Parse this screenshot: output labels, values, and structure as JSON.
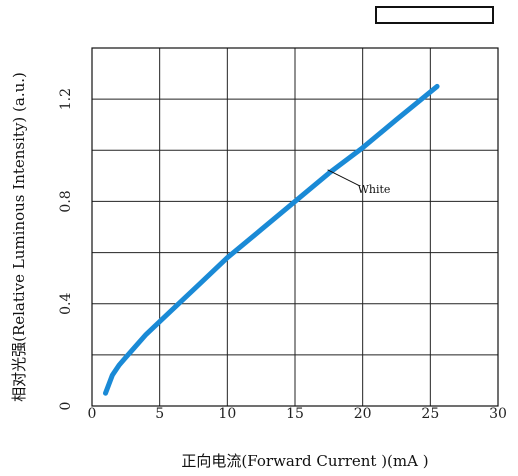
{
  "chart_data": {
    "type": "line",
    "xlabel": "正向电流(Forward Current )(mA )",
    "ylabel": "相对光强(Relative Luminous Intensity) (a.u.)",
    "xlim": [
      0,
      30
    ],
    "ylim": [
      0,
      1.4
    ],
    "x_ticks": [
      0,
      5,
      10,
      15,
      20,
      25,
      30
    ],
    "y_ticks": [
      0,
      0.4,
      0.8,
      1.2
    ],
    "x_tick_labels": [
      "0",
      "5",
      "10",
      "15",
      "20",
      "25",
      "30"
    ],
    "y_tick_labels": [
      "0",
      "0.4",
      "0.8",
      "1.2"
    ],
    "grid": true,
    "x_grid": [
      0,
      5,
      10,
      15,
      20,
      25,
      30
    ],
    "y_grid": [
      0,
      0.2,
      0.4,
      0.6,
      0.8,
      1.0,
      1.2,
      1.4
    ],
    "legend_box": "top-right",
    "series": [
      {
        "name": "White",
        "color": "#1a8ad6",
        "x": [
          1.0,
          1.5,
          2.0,
          2.5,
          3.0,
          4.0,
          5.0,
          6.0,
          8.0,
          10.0,
          12.5,
          15.0,
          17.5,
          20.0,
          22.5,
          25.5
        ],
        "y": [
          0.05,
          0.12,
          0.16,
          0.19,
          0.22,
          0.28,
          0.33,
          0.38,
          0.48,
          0.58,
          0.69,
          0.8,
          0.91,
          1.01,
          1.12,
          1.25
        ]
      }
    ],
    "annotations": [
      {
        "text": "White",
        "x": 18.0,
        "y": 0.9
      }
    ]
  }
}
